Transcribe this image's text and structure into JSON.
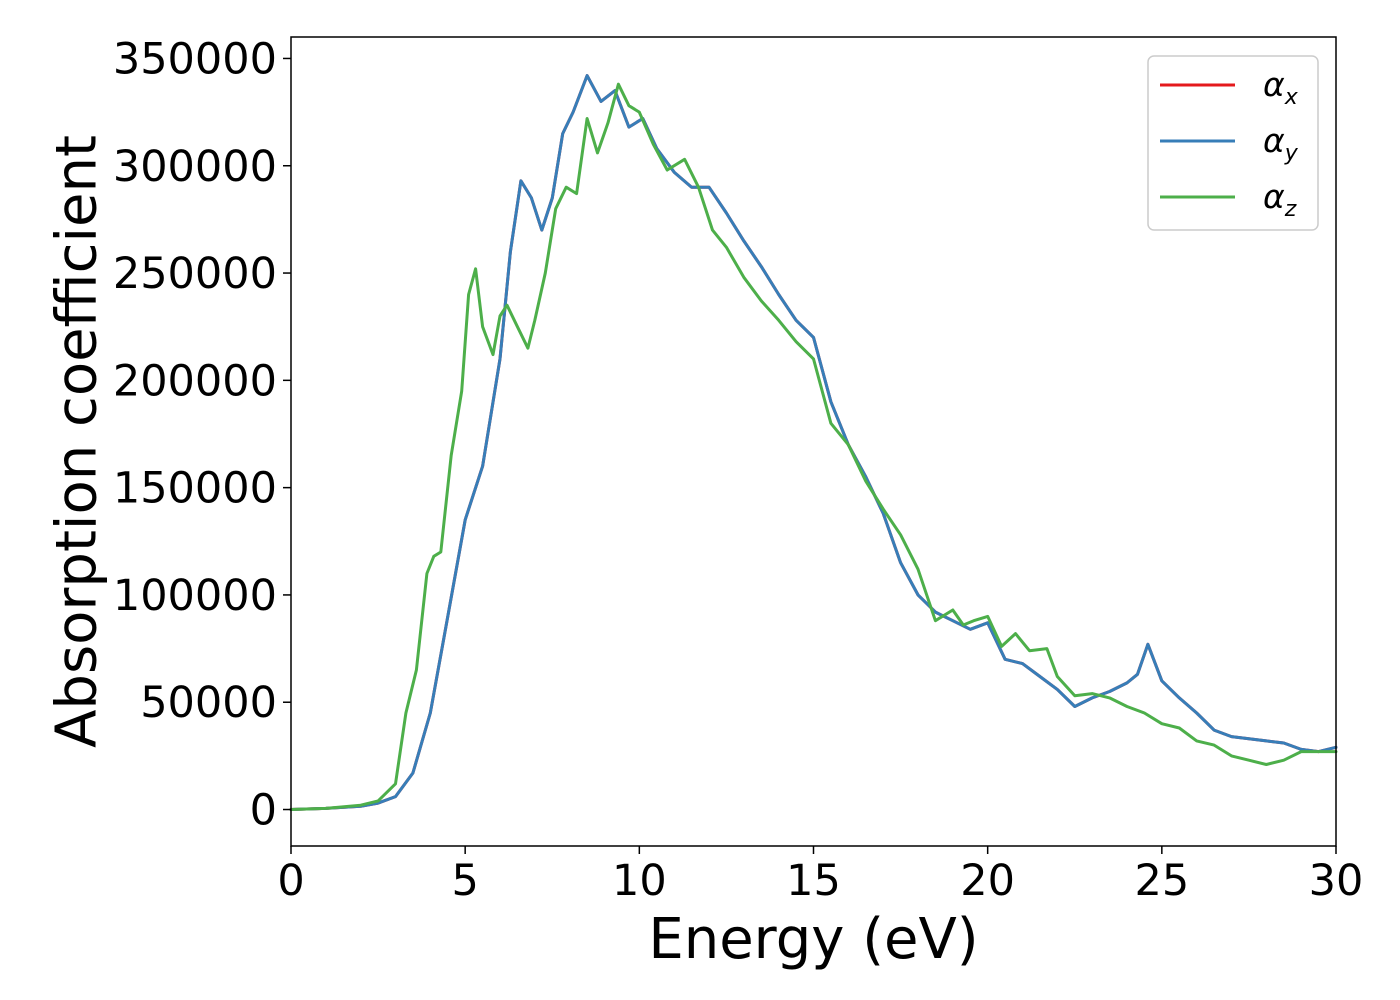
{
  "chart_data": {
    "type": "line",
    "title": "",
    "xlabel": "Energy (eV)",
    "ylabel": "Absorption coefficient",
    "xlim": [
      0,
      30
    ],
    "ylim": [
      -17000,
      360000
    ],
    "xticks": [
      0,
      5,
      10,
      15,
      20,
      25,
      30
    ],
    "xtick_labels": [
      "0",
      "5",
      "10",
      "15",
      "20",
      "25",
      "30"
    ],
    "yticks": [
      0,
      50000,
      100000,
      150000,
      200000,
      250000,
      300000,
      350000
    ],
    "ytick_labels": [
      "0",
      "50000",
      "100000",
      "150000",
      "200000",
      "250000",
      "300000",
      "350000"
    ],
    "grid": false,
    "legend_position": "top-right",
    "series": [
      {
        "name": "α",
        "sub": "x",
        "color": "#e41a1c",
        "x": [
          0,
          1,
          2,
          2.5,
          3,
          3.5,
          4,
          4.5,
          5,
          5.5,
          6,
          6.3,
          6.6,
          6.9,
          7.2,
          7.5,
          7.8,
          8.1,
          8.5,
          8.9,
          9.3,
          9.7,
          10.1,
          10.5,
          11,
          11.5,
          12,
          12.5,
          13,
          13.5,
          14,
          14.5,
          15,
          15.5,
          16,
          16.5,
          17,
          17.5,
          18,
          18.5,
          19,
          19.5,
          20,
          20.5,
          21,
          21.5,
          22,
          22.5,
          23,
          23.5,
          24,
          24.3,
          24.6,
          25,
          25.5,
          26,
          26.5,
          27,
          27.5,
          28,
          28.5,
          29,
          29.5,
          30
        ],
        "values": [
          0,
          500,
          1500,
          3000,
          6000,
          17000,
          45000,
          90000,
          135000,
          160000,
          210000,
          260000,
          293000,
          285000,
          270000,
          285000,
          315000,
          325000,
          342000,
          330000,
          335000,
          318000,
          322000,
          308000,
          297000,
          290000,
          290000,
          278000,
          265000,
          253000,
          240000,
          228000,
          220000,
          190000,
          170000,
          155000,
          138000,
          115000,
          100000,
          92000,
          88000,
          84000,
          87000,
          70000,
          68000,
          62000,
          56000,
          48000,
          52000,
          55000,
          59000,
          63000,
          77000,
          60000,
          52000,
          45000,
          37000,
          34000,
          33000,
          32000,
          31000,
          28000,
          27000,
          29000
        ]
      },
      {
        "name": "α",
        "sub": "y",
        "color": "#377eb8",
        "x": [
          0,
          1,
          2,
          2.5,
          3,
          3.5,
          4,
          4.5,
          5,
          5.5,
          6,
          6.3,
          6.6,
          6.9,
          7.2,
          7.5,
          7.8,
          8.1,
          8.5,
          8.9,
          9.3,
          9.7,
          10.1,
          10.5,
          11,
          11.5,
          12,
          12.5,
          13,
          13.5,
          14,
          14.5,
          15,
          15.5,
          16,
          16.5,
          17,
          17.5,
          18,
          18.5,
          19,
          19.5,
          20,
          20.5,
          21,
          21.5,
          22,
          22.5,
          23,
          23.5,
          24,
          24.3,
          24.6,
          25,
          25.5,
          26,
          26.5,
          27,
          27.5,
          28,
          28.5,
          29,
          29.5,
          30
        ],
        "values": [
          0,
          500,
          1500,
          3000,
          6000,
          17000,
          45000,
          90000,
          135000,
          160000,
          210000,
          260000,
          293000,
          285000,
          270000,
          285000,
          315000,
          325000,
          342000,
          330000,
          335000,
          318000,
          322000,
          308000,
          297000,
          290000,
          290000,
          278000,
          265000,
          253000,
          240000,
          228000,
          220000,
          190000,
          170000,
          155000,
          138000,
          115000,
          100000,
          92000,
          88000,
          84000,
          87000,
          70000,
          68000,
          62000,
          56000,
          48000,
          52000,
          55000,
          59000,
          63000,
          77000,
          60000,
          52000,
          45000,
          37000,
          34000,
          33000,
          32000,
          31000,
          28000,
          27000,
          29000
        ]
      },
      {
        "name": "α",
        "sub": "z",
        "color": "#4daf4a",
        "x": [
          0,
          1,
          2,
          2.5,
          3,
          3.3,
          3.6,
          3.9,
          4.1,
          4.3,
          4.6,
          4.9,
          5.1,
          5.3,
          5.5,
          5.8,
          6.0,
          6.2,
          6.5,
          6.8,
          7.0,
          7.3,
          7.6,
          7.9,
          8.2,
          8.5,
          8.8,
          9.1,
          9.4,
          9.7,
          10.0,
          10.4,
          10.8,
          11.3,
          11.7,
          12.1,
          12.5,
          13.0,
          13.5,
          14.0,
          14.5,
          15.0,
          15.5,
          16.0,
          16.5,
          17.0,
          17.5,
          18.0,
          18.5,
          19.0,
          19.3,
          19.6,
          20.0,
          20.4,
          20.8,
          21.2,
          21.7,
          22.0,
          22.5,
          23.0,
          23.5,
          24.0,
          24.5,
          25.0,
          25.5,
          26.0,
          26.5,
          27.0,
          27.5,
          28.0,
          28.5,
          29.0,
          29.5,
          30
        ],
        "values": [
          0,
          500,
          2000,
          4000,
          12000,
          45000,
          65000,
          110000,
          118000,
          120000,
          165000,
          195000,
          240000,
          252000,
          225000,
          212000,
          230000,
          235000,
          225000,
          215000,
          228000,
          250000,
          280000,
          290000,
          287000,
          322000,
          306000,
          320000,
          338000,
          328000,
          325000,
          310000,
          298000,
          303000,
          290000,
          270000,
          262000,
          248000,
          237000,
          228000,
          218000,
          210000,
          180000,
          170000,
          153000,
          140000,
          128000,
          112000,
          88000,
          93000,
          86000,
          88000,
          90000,
          76000,
          82000,
          74000,
          75000,
          62000,
          53000,
          54000,
          52000,
          48000,
          45000,
          40000,
          38000,
          32000,
          30000,
          25000,
          23000,
          21000,
          23000,
          27000,
          27000,
          27000
        ]
      }
    ]
  }
}
